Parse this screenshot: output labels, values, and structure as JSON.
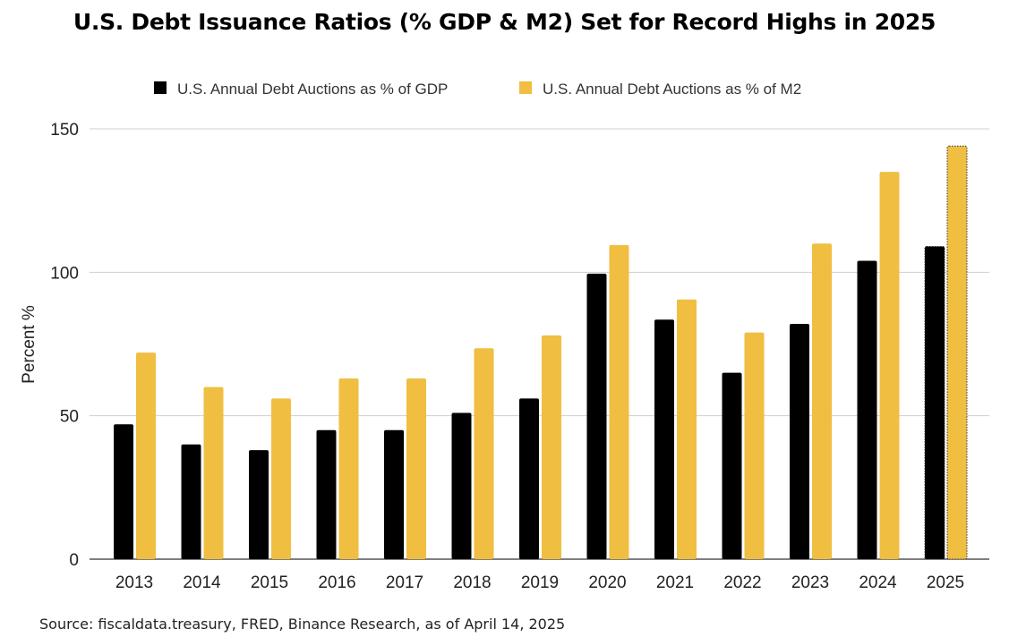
{
  "title": "U.S. Debt Issuance Ratios (% GDP & M2) Set for Record Highs in 2025",
  "source": "Source: fiscaldata.treasury, FRED, Binance Research, as of April 14, 2025",
  "chart_data": {
    "type": "bar",
    "title": "U.S. Debt Issuance Ratios (% GDP & M2) Set for Record Highs in 2025",
    "xlabel": "",
    "ylabel": "Percent %",
    "ylim": [
      0,
      150
    ],
    "yticks": [
      0,
      50,
      100,
      150
    ],
    "grid": true,
    "legend_position": "top",
    "categories": [
      "2013",
      "2014",
      "2015",
      "2016",
      "2017",
      "2018",
      "2019",
      "2020",
      "2021",
      "2022",
      "2023",
      "2024",
      "2025"
    ],
    "series": [
      {
        "name": "U.S. Annual Debt Auctions as % of GDP",
        "color": "#000000",
        "values": [
          47,
          40,
          38,
          45,
          45,
          51,
          56,
          99.5,
          83.5,
          65,
          82,
          104,
          109
        ]
      },
      {
        "name": "U.S. Annual Debt Auctions as % of  M2",
        "color": "#F0BE41",
        "values": [
          72,
          60,
          56,
          63,
          63,
          73.5,
          78,
          109.5,
          90.5,
          79,
          110,
          135,
          144
        ]
      }
    ],
    "projected_categories": [
      "2025"
    ]
  }
}
